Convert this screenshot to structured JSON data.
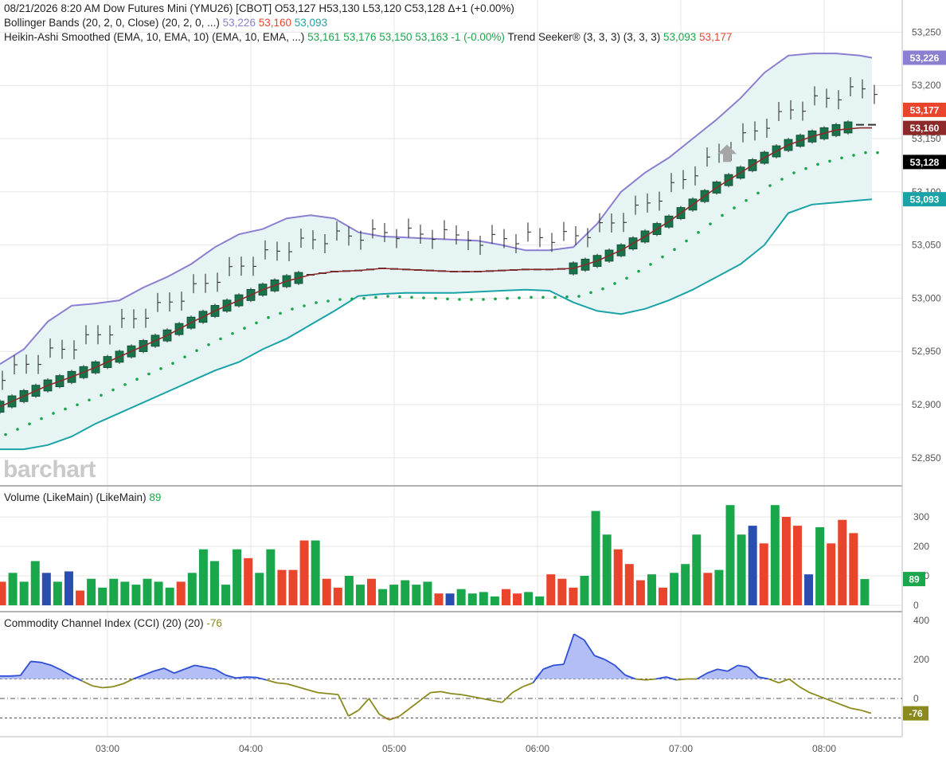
{
  "header": {
    "line1": "08/21/2026  8:20 AM Dow Futures Mini (YMU26) [CBOT] O53,127 H53,130 L53,120 C53,128 Δ+1 (+0.00%)",
    "bb_label": "Bollinger Bands (20, 2, 0, Close)  (20, 2, 0, ...)",
    "bb_upper": "53,226",
    "bb_mid": "53,160",
    "bb_lower": "53,093",
    "ha_label": "Heikin-Ashi Smoothed (EMA, 10, EMA, 10)  (EMA, 10, EMA, ...)",
    "ha_o": "53,161",
    "ha_h": "53,176",
    "ha_l": "53,150",
    "ha_c": "53,163",
    "ha_chg": "-1 (-0.00%)",
    "ts_label": "Trend Seeker® (3, 3, 3)  (3, 3, 3)",
    "ts_v1": "53,093",
    "ts_v2": "53,177"
  },
  "volume_panel": {
    "label": "Volume (LikeMain)  (LikeMain)",
    "value": "89"
  },
  "cci_panel": {
    "label": "Commodity Channel Index (CCI) (20)  (20)",
    "value": "-76"
  },
  "logo": "barchart",
  "colors": {
    "up": "#1aa64b",
    "down": "#e8452c",
    "neutral": "#2a4db0",
    "bb_upper": "#8a7fd0",
    "bb_lower": "#1aa3a7",
    "bb_fill": "#e6f5f4",
    "ha_body": "#19734a",
    "ema": "#8c2a2a",
    "cci": "#2e4fd6",
    "cci_low": "#8a8a1e"
  },
  "chart_data": [
    {
      "type": "line",
      "panel": "price",
      "x_tick_labels": [
        "03:00",
        "04:00",
        "05:00",
        "06:00",
        "07:00",
        "08:00"
      ],
      "y_tick_labels": [
        "52,850",
        "52,900",
        "52,950",
        "53,000",
        "53,050",
        "53,100",
        "53,150",
        "53,200",
        "53,250"
      ],
      "ylim": [
        52825,
        53265
      ],
      "x": [
        "02:15",
        "02:25",
        "02:35",
        "02:45",
        "02:55",
        "03:05",
        "03:15",
        "03:25",
        "03:35",
        "03:45",
        "03:55",
        "04:05",
        "04:15",
        "04:25",
        "04:35",
        "04:45",
        "04:55",
        "05:05",
        "05:15",
        "05:25",
        "05:35",
        "05:45",
        "05:55",
        "06:05",
        "06:15",
        "06:25",
        "06:35",
        "06:45",
        "06:55",
        "07:05",
        "07:15",
        "07:25",
        "07:35",
        "07:45",
        "07:55",
        "08:05",
        "08:15",
        "08:20"
      ],
      "series": [
        {
          "values": [
            52938,
            52952,
            52978,
            52993,
            52995,
            52998,
            53010,
            53020,
            53032,
            53048,
            53060,
            53065,
            53075,
            53078,
            53075,
            53062,
            53058,
            53057,
            53056,
            53055,
            53054,
            53050,
            53045,
            53045,
            53048,
            53070,
            53100,
            53118,
            53132,
            53150,
            53168,
            53188,
            53212,
            53228,
            53230,
            53230,
            53228,
            53226
          ]
        },
        {
          "values": [
            52898,
            52908,
            52918,
            52926,
            52935,
            52945,
            52955,
            52965,
            52977,
            52988,
            52998,
            53008,
            53016,
            53022,
            53025,
            53026,
            53028,
            53027,
            53026,
            53025,
            53025,
            53026,
            53027,
            53027,
            53028,
            53035,
            53045,
            53058,
            53072,
            53088,
            53104,
            53118,
            53132,
            53144,
            53152,
            53158,
            53160,
            53160
          ]
        },
        {
          "values": [
            52858,
            52858,
            52862,
            52870,
            52882,
            52892,
            52902,
            52912,
            52922,
            52932,
            52940,
            52952,
            52962,
            52975,
            52988,
            53002,
            53004,
            53005,
            53005,
            53005,
            53006,
            53007,
            53008,
            53007,
            52996,
            52988,
            52985,
            52990,
            52998,
            53008,
            53020,
            53032,
            53050,
            53080,
            53088,
            53090,
            53092,
            53093
          ]
        }
      ],
      "heikin_ashi_close": [
        52898,
        52908,
        52918,
        52926,
        52935,
        52945,
        52955,
        52965,
        52977,
        52988,
        52998,
        53008,
        53016,
        53022,
        53025,
        53026,
        53028,
        53027,
        53026,
        53025,
        53025,
        53026,
        53027,
        53027,
        53028,
        53035,
        53045,
        53058,
        53072,
        53088,
        53104,
        53118,
        53132,
        53144,
        53152,
        53158,
        53163,
        53163
      ],
      "current_price": 53128,
      "marker_values": {
        "upper": 53226,
        "ts_high": 53177,
        "mid": 53160,
        "last": 53128,
        "lower": 53093
      }
    },
    {
      "type": "bar",
      "panel": "volume",
      "y_tick_labels": [
        "0",
        "100",
        "200",
        "300"
      ],
      "ylim": [
        0,
        340
      ],
      "values": [
        80,
        110,
        80,
        150,
        110,
        80,
        115,
        50,
        90,
        60,
        90,
        80,
        70,
        90,
        80,
        60,
        80,
        110,
        190,
        150,
        70,
        190,
        160,
        110,
        190,
        120,
        120,
        220,
        220,
        90,
        60,
        100,
        70,
        90,
        55,
        70,
        85,
        70,
        80,
        40,
        40,
        55,
        40,
        45,
        30,
        55,
        40,
        45,
        30,
        105,
        90,
        60,
        100,
        320,
        240,
        190,
        140,
        85,
        105,
        60,
        110,
        140,
        240,
        110,
        120,
        340,
        240,
        270,
        210,
        340,
        300,
        270,
        105,
        265,
        210,
        290,
        245,
        89
      ],
      "directions": [
        "d",
        "u",
        "u",
        "u",
        "n",
        "u",
        "n",
        "d",
        "u",
        "u",
        "u",
        "u",
        "u",
        "u",
        "u",
        "u",
        "d",
        "u",
        "u",
        "u",
        "u",
        "u",
        "d",
        "u",
        "u",
        "d",
        "d",
        "d",
        "u",
        "d",
        "d",
        "u",
        "u",
        "d",
        "u",
        "u",
        "u",
        "u",
        "u",
        "d",
        "n",
        "u",
        "u",
        "u",
        "u",
        "d",
        "d",
        "u",
        "u",
        "d",
        "d",
        "d",
        "u",
        "u",
        "u",
        "d",
        "d",
        "d",
        "u",
        "d",
        "u",
        "u",
        "u",
        "d",
        "u",
        "u",
        "u",
        "n",
        "d",
        "u",
        "d",
        "d",
        "n",
        "u",
        "d",
        "d",
        "d",
        "u"
      ],
      "current_value": 89
    },
    {
      "type": "area",
      "panel": "cci",
      "y_tick_labels": [
        "0",
        "200",
        "400"
      ],
      "reference_lines": [
        100,
        0,
        -100
      ],
      "ylim": [
        -140,
        430
      ],
      "values": [
        115,
        115,
        118,
        190,
        185,
        170,
        145,
        115,
        90,
        65,
        55,
        60,
        75,
        100,
        120,
        140,
        155,
        130,
        150,
        170,
        160,
        150,
        120,
        105,
        110,
        108,
        95,
        80,
        75,
        60,
        45,
        30,
        25,
        20,
        -90,
        -60,
        0,
        -80,
        -110,
        -90,
        -50,
        -10,
        30,
        35,
        25,
        20,
        10,
        0,
        -10,
        -20,
        30,
        60,
        80,
        150,
        170,
        175,
        330,
        300,
        220,
        200,
        170,
        120,
        100,
        95,
        100,
        110,
        95,
        100,
        100,
        130,
        150,
        140,
        170,
        160,
        110,
        100,
        80,
        100,
        60,
        30,
        10,
        -10,
        -30,
        -50,
        -60,
        -76
      ],
      "current_value": -76
    }
  ]
}
